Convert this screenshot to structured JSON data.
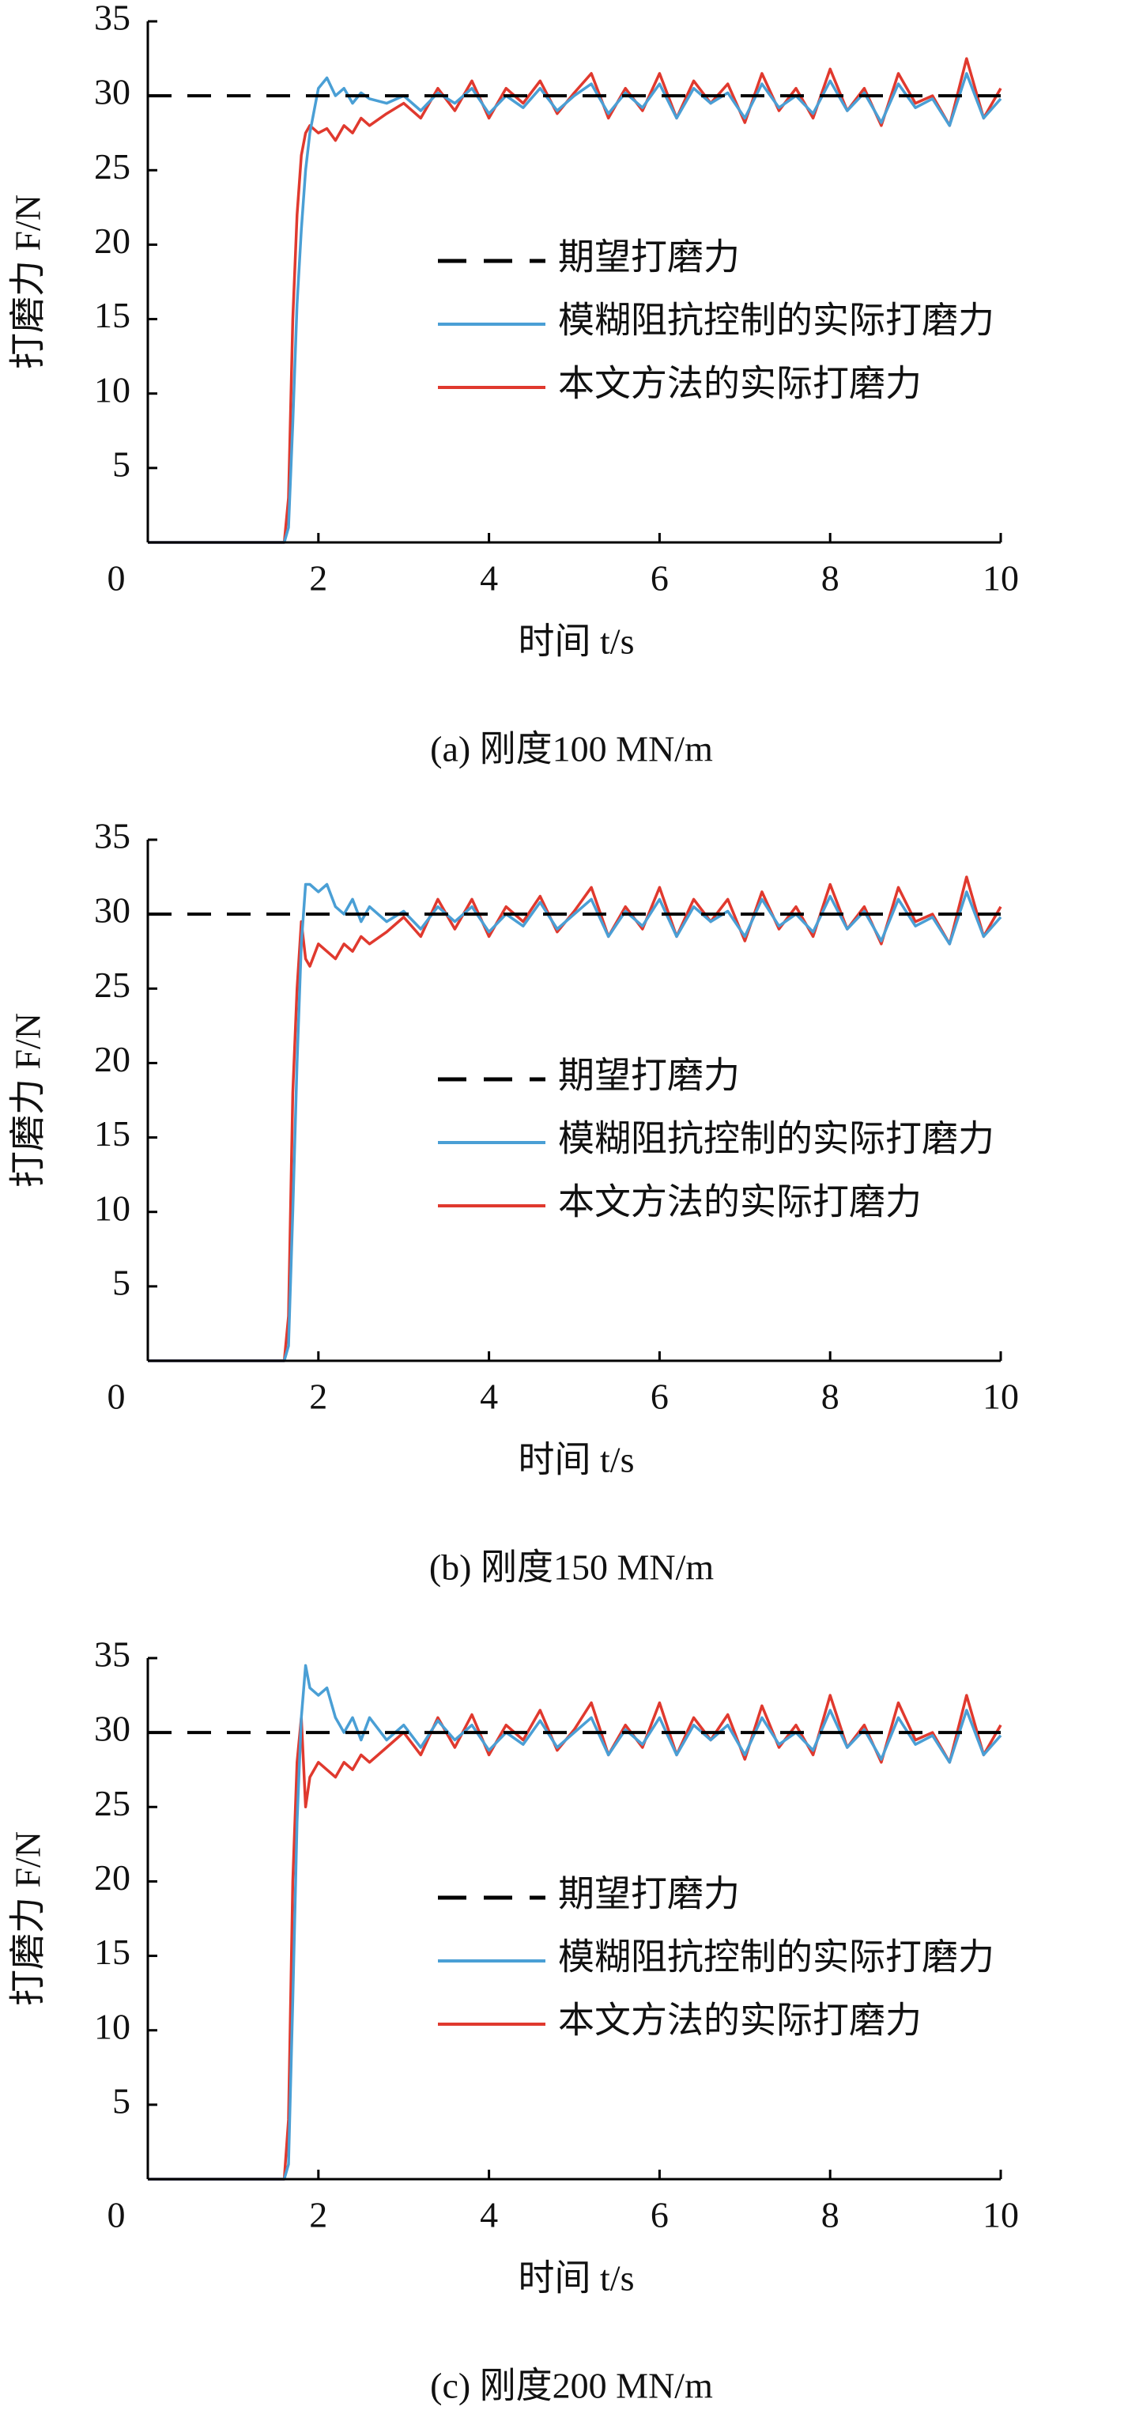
{
  "chart_data": [
    {
      "type": "line",
      "ylabel": "打磨力 F/N",
      "xlabel": "时间 t/s",
      "caption": "(a) 刚度100 MN/m",
      "xlim": [
        0,
        10
      ],
      "ylim": [
        0,
        35
      ],
      "xticks": [
        0,
        2,
        4,
        6,
        8,
        10
      ],
      "yticks": [
        5,
        10,
        15,
        20,
        25,
        30,
        35
      ],
      "x": [
        0,
        1.6,
        1.65,
        1.7,
        1.75,
        1.8,
        1.85,
        1.9,
        2.0,
        2.1,
        2.2,
        2.3,
        2.4,
        2.5,
        2.6,
        2.8,
        3.0,
        3.2,
        3.4,
        3.6,
        3.8,
        4.0,
        4.2,
        4.4,
        4.6,
        4.8,
        5.0,
        5.2,
        5.4,
        5.6,
        5.8,
        6.0,
        6.2,
        6.4,
        6.6,
        6.8,
        7.0,
        7.2,
        7.4,
        7.6,
        7.8,
        8.0,
        8.2,
        8.4,
        8.6,
        8.8,
        9.0,
        9.2,
        9.4,
        9.6,
        9.8,
        10.0
      ],
      "series": [
        {
          "name": "期望打磨力",
          "color": "#000000",
          "dashed": true,
          "values": [
            30,
            30,
            30,
            30,
            30,
            30,
            30,
            30,
            30,
            30,
            30,
            30,
            30,
            30,
            30,
            30,
            30,
            30,
            30,
            30,
            30,
            30,
            30,
            30,
            30,
            30,
            30,
            30,
            30,
            30,
            30,
            30,
            30,
            30,
            30,
            30,
            30,
            30,
            30,
            30,
            30,
            30,
            30,
            30,
            30,
            30,
            30,
            30,
            30,
            30,
            30,
            30
          ]
        },
        {
          "name": "模糊阻抗控制的实际打磨力",
          "color": "#4a9fd5",
          "values": [
            0,
            0,
            1,
            8,
            16,
            21,
            25,
            27.5,
            30.5,
            31.2,
            30,
            30.5,
            29.5,
            30.2,
            29.8,
            29.5,
            30,
            29,
            30.2,
            29.5,
            30.5,
            28.8,
            30,
            29.2,
            30.5,
            29,
            30,
            30.8,
            28.8,
            30.2,
            29.2,
            30.8,
            28.5,
            30.5,
            29.5,
            30.2,
            28.5,
            30.8,
            29.2,
            30,
            28.8,
            31,
            29,
            30.2,
            28.2,
            30.8,
            29.2,
            29.8,
            28,
            31.5,
            28.5,
            29.8
          ]
        },
        {
          "name": "本文方法的实际打磨力",
          "color": "#e0392e",
          "values": [
            0,
            0,
            3,
            15,
            22,
            26,
            27.5,
            28,
            27.5,
            27.8,
            27,
            28,
            27.5,
            28.5,
            28,
            28.8,
            29.5,
            28.5,
            30.5,
            29,
            31,
            28.5,
            30.5,
            29.5,
            31,
            28.8,
            30.2,
            31.5,
            28.5,
            30.5,
            29,
            31.5,
            28.5,
            31,
            29.5,
            30.8,
            28.2,
            31.5,
            29,
            30.5,
            28.5,
            31.8,
            29,
            30.5,
            28,
            31.5,
            29.5,
            30,
            28,
            32.5,
            28.5,
            30.5
          ]
        }
      ]
    },
    {
      "type": "line",
      "ylabel": "打磨力 F/N",
      "xlabel": "时间 t/s",
      "caption": "(b) 刚度150 MN/m",
      "xlim": [
        0,
        10
      ],
      "ylim": [
        0,
        35
      ],
      "xticks": [
        0,
        2,
        4,
        6,
        8,
        10
      ],
      "yticks": [
        5,
        10,
        15,
        20,
        25,
        30,
        35
      ],
      "x": [
        0,
        1.6,
        1.65,
        1.7,
        1.75,
        1.8,
        1.85,
        1.9,
        2.0,
        2.1,
        2.2,
        2.3,
        2.4,
        2.5,
        2.6,
        2.8,
        3.0,
        3.2,
        3.4,
        3.6,
        3.8,
        4.0,
        4.2,
        4.4,
        4.6,
        4.8,
        5.0,
        5.2,
        5.4,
        5.6,
        5.8,
        6.0,
        6.2,
        6.4,
        6.6,
        6.8,
        7.0,
        7.2,
        7.4,
        7.6,
        7.8,
        8.0,
        8.2,
        8.4,
        8.6,
        8.8,
        9.0,
        9.2,
        9.4,
        9.6,
        9.8,
        10.0
      ],
      "series": [
        {
          "name": "期望打磨力",
          "color": "#000000",
          "dashed": true,
          "values": [
            30,
            30,
            30,
            30,
            30,
            30,
            30,
            30,
            30,
            30,
            30,
            30,
            30,
            30,
            30,
            30,
            30,
            30,
            30,
            30,
            30,
            30,
            30,
            30,
            30,
            30,
            30,
            30,
            30,
            30,
            30,
            30,
            30,
            30,
            30,
            30,
            30,
            30,
            30,
            30,
            30,
            30,
            30,
            30,
            30,
            30,
            30,
            30,
            30,
            30,
            30,
            30
          ]
        },
        {
          "name": "模糊阻抗控制的实际打磨力",
          "color": "#4a9fd5",
          "values": [
            0,
            0,
            1,
            10,
            20,
            28,
            32,
            32,
            31.5,
            32,
            30.5,
            30,
            31,
            29.5,
            30.5,
            29.5,
            30.2,
            29,
            30.5,
            29.5,
            30.5,
            28.8,
            30,
            29.2,
            30.8,
            29,
            30,
            31,
            28.5,
            30.2,
            29.2,
            31,
            28.5,
            30.5,
            29.5,
            30.2,
            28.5,
            31,
            29.2,
            30,
            28.8,
            31.2,
            29,
            30.2,
            28.2,
            31,
            29.2,
            29.8,
            28,
            31.5,
            28.5,
            29.8
          ]
        },
        {
          "name": "本文方法的实际打磨力",
          "color": "#e0392e",
          "values": [
            0,
            0,
            3,
            18,
            25,
            29.5,
            27,
            26.5,
            28,
            27.5,
            27,
            28,
            27.5,
            28.5,
            28,
            28.8,
            29.8,
            28.5,
            31,
            29,
            31,
            28.5,
            30.5,
            29.5,
            31.2,
            28.8,
            30.2,
            31.8,
            28.5,
            30.5,
            29,
            31.8,
            28.5,
            31,
            29.5,
            31,
            28.2,
            31.5,
            29,
            30.5,
            28.5,
            32,
            29,
            30.5,
            28,
            31.8,
            29.5,
            30,
            28,
            32.5,
            28.5,
            30.5
          ]
        }
      ]
    },
    {
      "type": "line",
      "ylabel": "打磨力 F/N",
      "xlabel": "时间 t/s",
      "caption": "(c) 刚度200 MN/m",
      "xlim": [
        0,
        10
      ],
      "ylim": [
        0,
        35
      ],
      "xticks": [
        0,
        2,
        4,
        6,
        8,
        10
      ],
      "yticks": [
        5,
        10,
        15,
        20,
        25,
        30,
        35
      ],
      "x": [
        0,
        1.6,
        1.65,
        1.7,
        1.75,
        1.8,
        1.85,
        1.9,
        2.0,
        2.1,
        2.2,
        2.3,
        2.4,
        2.5,
        2.6,
        2.8,
        3.0,
        3.2,
        3.4,
        3.6,
        3.8,
        4.0,
        4.2,
        4.4,
        4.6,
        4.8,
        5.0,
        5.2,
        5.4,
        5.6,
        5.8,
        6.0,
        6.2,
        6.4,
        6.6,
        6.8,
        7.0,
        7.2,
        7.4,
        7.6,
        7.8,
        8.0,
        8.2,
        8.4,
        8.6,
        8.8,
        9.0,
        9.2,
        9.4,
        9.6,
        9.8,
        10.0
      ],
      "series": [
        {
          "name": "期望打磨力",
          "color": "#000000",
          "dashed": true,
          "values": [
            30,
            30,
            30,
            30,
            30,
            30,
            30,
            30,
            30,
            30,
            30,
            30,
            30,
            30,
            30,
            30,
            30,
            30,
            30,
            30,
            30,
            30,
            30,
            30,
            30,
            30,
            30,
            30,
            30,
            30,
            30,
            30,
            30,
            30,
            30,
            30,
            30,
            30,
            30,
            30,
            30,
            30,
            30,
            30,
            30,
            30,
            30,
            30,
            30,
            30,
            30,
            30
          ]
        },
        {
          "name": "模糊阻抗控制的实际打磨力",
          "color": "#4a9fd5",
          "values": [
            0,
            0,
            1,
            12,
            24,
            31,
            34.5,
            33,
            32.5,
            33,
            31,
            30,
            31,
            29.5,
            31,
            29.5,
            30.5,
            29,
            30.8,
            29.5,
            30.5,
            28.8,
            30,
            29.2,
            30.8,
            29,
            30,
            31,
            28.5,
            30.2,
            29.2,
            31,
            28.5,
            30.5,
            29.5,
            30.5,
            28.5,
            31,
            29.2,
            30,
            28.8,
            31.5,
            29,
            30.2,
            28.2,
            31,
            29.2,
            29.8,
            28,
            31.5,
            28.5,
            29.8
          ]
        },
        {
          "name": "本文方法的实际打磨力",
          "color": "#e0392e",
          "values": [
            0,
            0,
            4,
            20,
            28,
            31,
            25,
            27,
            28,
            27.5,
            27,
            28,
            27.5,
            28.5,
            28,
            29,
            30,
            28.5,
            31,
            29,
            31.2,
            28.5,
            30.5,
            29.5,
            31.5,
            28.8,
            30.2,
            32,
            28.5,
            30.5,
            29,
            32,
            28.5,
            31,
            29.5,
            31.2,
            28.2,
            31.8,
            29,
            30.5,
            28.5,
            32.5,
            29,
            30.5,
            28,
            32,
            29.5,
            30,
            28,
            32.5,
            28.5,
            30.5
          ]
        }
      ]
    }
  ]
}
